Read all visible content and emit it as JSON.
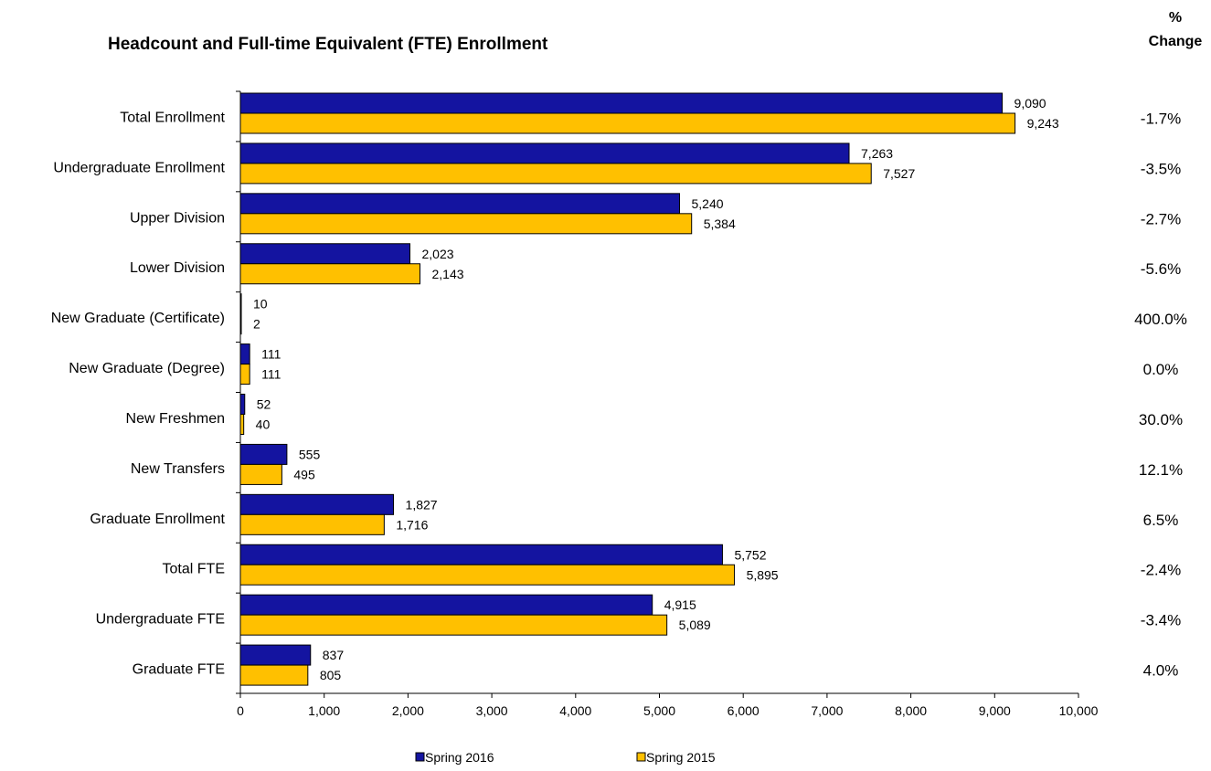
{
  "chart_data": {
    "type": "bar",
    "orientation": "horizontal",
    "title": "Headcount and Full-time Equivalent (FTE) Enrollment",
    "pct_header_line1": "%",
    "pct_header_line2": "Change",
    "categories": [
      "Total Enrollment",
      "Undergraduate Enrollment",
      "Upper Division",
      "Lower Division",
      "New Graduate (Certificate)",
      "New Graduate (Degree)",
      "New Freshmen",
      "New Transfers",
      "Graduate Enrollment",
      "Total FTE",
      "Undergraduate FTE",
      "Graduate FTE"
    ],
    "series": [
      {
        "name": "Spring 2016",
        "color": "#1414A0",
        "values": [
          9090,
          7263,
          5240,
          2023,
          10,
          111,
          52,
          555,
          1827,
          5752,
          4915,
          837
        ],
        "labels": [
          "9,090",
          "7,263",
          "5,240",
          "2,023",
          "10",
          "111",
          "52",
          "555",
          "1,827",
          "5,752",
          "4,915",
          "837"
        ]
      },
      {
        "name": "Spring 2015",
        "color": "#FFC000",
        "values": [
          9243,
          7527,
          5384,
          2143,
          2,
          111,
          40,
          495,
          1716,
          5895,
          5089,
          805
        ],
        "labels": [
          "9,243",
          "7,527",
          "5,384",
          "2,143",
          "2",
          "111",
          "40",
          "495",
          "1,716",
          "5,895",
          "5,089",
          "805"
        ]
      }
    ],
    "pct_change": [
      "-1.7%",
      "-3.5%",
      "-2.7%",
      "-5.6%",
      "400.0%",
      "0.0%",
      "30.0%",
      "12.1%",
      "6.5%",
      "-2.4%",
      "-3.4%",
      "4.0%"
    ],
    "xlim": [
      0,
      10000
    ],
    "xticks": [
      0,
      1000,
      2000,
      3000,
      4000,
      5000,
      6000,
      7000,
      8000,
      9000,
      10000
    ],
    "xtick_labels": [
      "0",
      "1,000",
      "2,000",
      "3,000",
      "4,000",
      "5,000",
      "6,000",
      "7,000",
      "8,000",
      "9,000",
      "10,000"
    ],
    "grid": false,
    "legend_position": "bottom"
  }
}
